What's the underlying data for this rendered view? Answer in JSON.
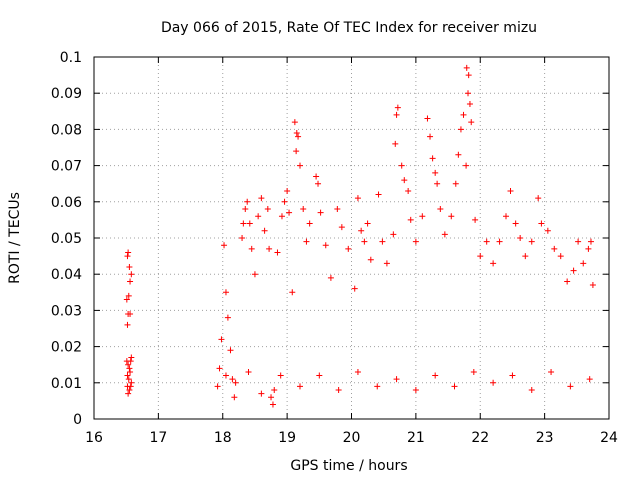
{
  "chart_data": {
    "type": "scatter",
    "title": "Day 066 of 2015, Rate Of TEC Index for receiver mizu",
    "xlabel": "GPS time / hours",
    "ylabel": "ROTI / TECUs",
    "xlim": [
      16,
      24
    ],
    "ylim": [
      0,
      0.1
    ],
    "x_ticks": [
      "16",
      "17",
      "18",
      "19",
      "20",
      "21",
      "22",
      "23",
      "24"
    ],
    "y_ticks": [
      "0",
      "0.01",
      "0.02",
      "0.03",
      "0.04",
      "0.05",
      "0.06",
      "0.07",
      "0.08",
      "0.09",
      "0.1"
    ],
    "grid": true,
    "marker": "+",
    "series": [
      {
        "name": "ROTI",
        "color": "#ff0000",
        "points": [
          [
            16.52,
            0.045
          ],
          [
            16.53,
            0.046
          ],
          [
            16.55,
            0.042
          ],
          [
            16.56,
            0.038
          ],
          [
            16.58,
            0.04
          ],
          [
            16.54,
            0.034
          ],
          [
            16.51,
            0.033
          ],
          [
            16.53,
            0.029
          ],
          [
            16.56,
            0.029
          ],
          [
            16.52,
            0.026
          ],
          [
            16.51,
            0.016
          ],
          [
            16.53,
            0.015
          ],
          [
            16.55,
            0.014
          ],
          [
            16.57,
            0.016
          ],
          [
            16.58,
            0.017
          ],
          [
            16.52,
            0.012
          ],
          [
            16.54,
            0.011
          ],
          [
            16.56,
            0.013
          ],
          [
            16.58,
            0.01
          ],
          [
            16.52,
            0.009
          ],
          [
            16.55,
            0.008
          ],
          [
            16.57,
            0.009
          ],
          [
            16.53,
            0.007
          ],
          [
            17.92,
            0.009
          ],
          [
            17.95,
            0.014
          ],
          [
            17.98,
            0.022
          ],
          [
            18.02,
            0.048
          ],
          [
            18.05,
            0.035
          ],
          [
            18.08,
            0.028
          ],
          [
            18.12,
            0.019
          ],
          [
            18.15,
            0.011
          ],
          [
            18.18,
            0.006
          ],
          [
            18.3,
            0.05
          ],
          [
            18.32,
            0.054
          ],
          [
            18.35,
            0.058
          ],
          [
            18.38,
            0.06
          ],
          [
            18.42,
            0.054
          ],
          [
            18.45,
            0.047
          ],
          [
            18.5,
            0.04
          ],
          [
            18.55,
            0.056
          ],
          [
            18.6,
            0.061
          ],
          [
            18.65,
            0.052
          ],
          [
            18.7,
            0.058
          ],
          [
            18.72,
            0.047
          ],
          [
            18.75,
            0.006
          ],
          [
            18.78,
            0.004
          ],
          [
            18.8,
            0.008
          ],
          [
            18.85,
            0.046
          ],
          [
            18.92,
            0.056
          ],
          [
            18.96,
            0.06
          ],
          [
            19.0,
            0.063
          ],
          [
            19.03,
            0.057
          ],
          [
            19.08,
            0.035
          ],
          [
            19.12,
            0.082
          ],
          [
            19.15,
            0.079
          ],
          [
            19.17,
            0.078
          ],
          [
            19.14,
            0.074
          ],
          [
            19.2,
            0.07
          ],
          [
            19.25,
            0.058
          ],
          [
            19.3,
            0.049
          ],
          [
            19.35,
            0.054
          ],
          [
            19.45,
            0.067
          ],
          [
            19.48,
            0.065
          ],
          [
            19.52,
            0.057
          ],
          [
            19.6,
            0.048
          ],
          [
            19.68,
            0.039
          ],
          [
            19.78,
            0.058
          ],
          [
            19.85,
            0.053
          ],
          [
            19.95,
            0.047
          ],
          [
            20.05,
            0.036
          ],
          [
            20.1,
            0.061
          ],
          [
            20.15,
            0.052
          ],
          [
            20.2,
            0.049
          ],
          [
            20.25,
            0.054
          ],
          [
            20.3,
            0.044
          ],
          [
            20.42,
            0.062
          ],
          [
            20.48,
            0.049
          ],
          [
            20.55,
            0.043
          ],
          [
            20.65,
            0.051
          ],
          [
            20.7,
            0.084
          ],
          [
            20.72,
            0.086
          ],
          [
            20.68,
            0.076
          ],
          [
            20.78,
            0.07
          ],
          [
            20.82,
            0.066
          ],
          [
            20.88,
            0.063
          ],
          [
            20.92,
            0.055
          ],
          [
            21.0,
            0.049
          ],
          [
            21.1,
            0.056
          ],
          [
            21.18,
            0.083
          ],
          [
            21.22,
            0.078
          ],
          [
            21.26,
            0.072
          ],
          [
            21.3,
            0.068
          ],
          [
            21.33,
            0.065
          ],
          [
            21.38,
            0.058
          ],
          [
            21.45,
            0.051
          ],
          [
            21.55,
            0.056
          ],
          [
            21.62,
            0.065
          ],
          [
            21.66,
            0.073
          ],
          [
            21.7,
            0.08
          ],
          [
            21.74,
            0.084
          ],
          [
            21.79,
            0.097
          ],
          [
            21.82,
            0.095
          ],
          [
            21.81,
            0.09
          ],
          [
            21.84,
            0.087
          ],
          [
            21.78,
            0.07
          ],
          [
            21.86,
            0.082
          ],
          [
            21.92,
            0.055
          ],
          [
            22.0,
            0.045
          ],
          [
            22.1,
            0.049
          ],
          [
            22.2,
            0.043
          ],
          [
            22.3,
            0.049
          ],
          [
            22.4,
            0.056
          ],
          [
            22.47,
            0.063
          ],
          [
            22.55,
            0.054
          ],
          [
            22.62,
            0.05
          ],
          [
            22.7,
            0.045
          ],
          [
            22.8,
            0.049
          ],
          [
            22.9,
            0.061
          ],
          [
            22.95,
            0.054
          ],
          [
            23.05,
            0.052
          ],
          [
            23.15,
            0.047
          ],
          [
            23.25,
            0.045
          ],
          [
            23.35,
            0.038
          ],
          [
            23.45,
            0.041
          ],
          [
            23.52,
            0.049
          ],
          [
            23.6,
            0.043
          ],
          [
            23.68,
            0.047
          ],
          [
            23.72,
            0.049
          ],
          [
            23.75,
            0.037
          ],
          [
            18.05,
            0.012
          ],
          [
            18.2,
            0.01
          ],
          [
            18.4,
            0.013
          ],
          [
            18.6,
            0.007
          ],
          [
            18.9,
            0.012
          ],
          [
            19.2,
            0.009
          ],
          [
            19.5,
            0.012
          ],
          [
            19.8,
            0.008
          ],
          [
            20.1,
            0.013
          ],
          [
            20.4,
            0.009
          ],
          [
            20.7,
            0.011
          ],
          [
            21.0,
            0.008
          ],
          [
            21.3,
            0.012
          ],
          [
            21.6,
            0.009
          ],
          [
            21.9,
            0.013
          ],
          [
            22.2,
            0.01
          ],
          [
            22.5,
            0.012
          ],
          [
            22.8,
            0.008
          ],
          [
            23.1,
            0.013
          ],
          [
            23.4,
            0.009
          ],
          [
            23.7,
            0.011
          ]
        ]
      }
    ]
  }
}
